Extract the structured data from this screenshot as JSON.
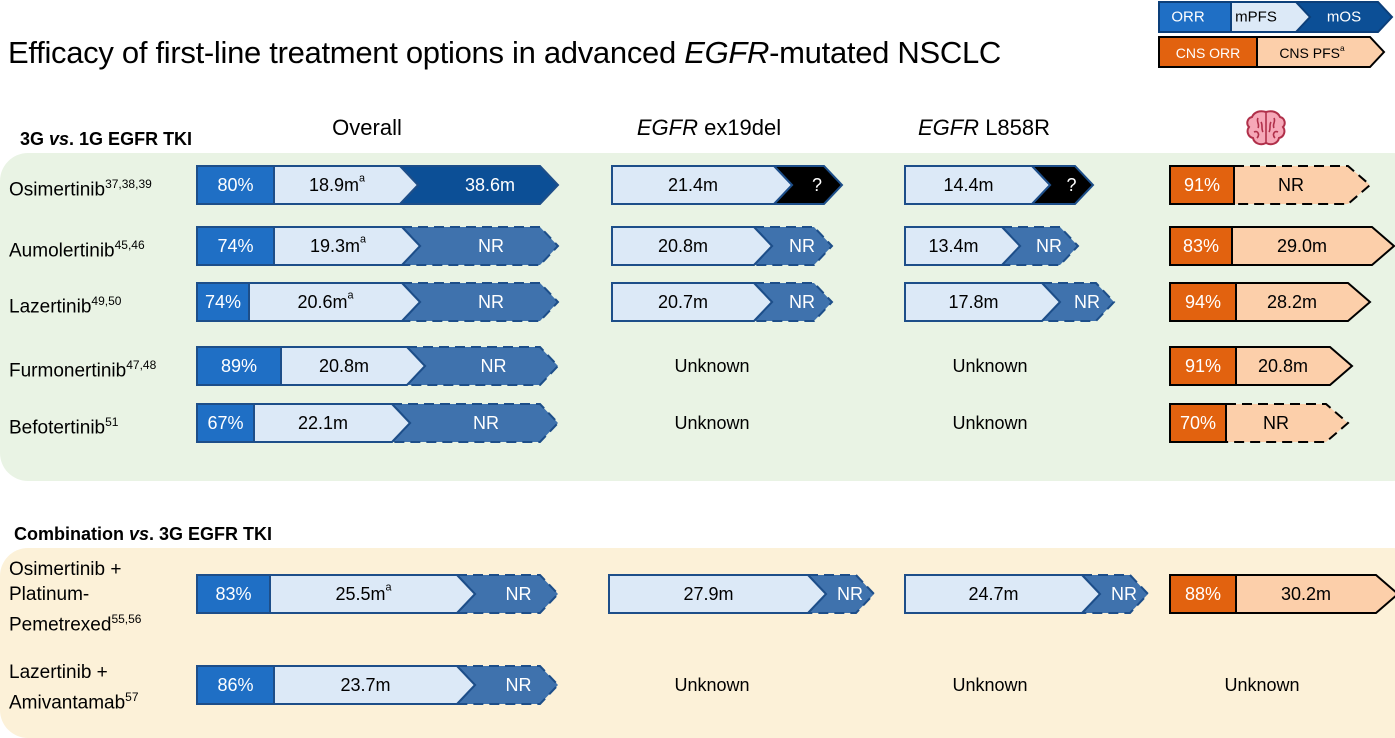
{
  "title": {
    "pre": "Efficacy of first-line treatment options in advanced ",
    "italic": "EGFR",
    "post": "-mutated NSCLC"
  },
  "legend": {
    "orr": "ORR",
    "mpfs": "mPFS",
    "mos": "mOS",
    "cns_orr": "CNS ORR",
    "cns_pfs": "CNS PFS",
    "cns_pfs_sup": "a"
  },
  "columns": {
    "overall": "Overall",
    "ex19_italic": "EGFR",
    "ex19_rest": " ex19del",
    "l858_italic": "EGFR",
    "l858_rest": " L858R",
    "cns_icon": "brain-icon"
  },
  "section1": {
    "pre": "3G ",
    "italic": "vs",
    "post": ". 1G EGFR TKI"
  },
  "section2": {
    "pre": "Combination ",
    "italic": "vs",
    "post": ". 3G EGFR TKI"
  },
  "rows": [
    {
      "drug": "Osimertinib",
      "sup": "37,38,39",
      "overall": {
        "orr": "80%",
        "pfs": "18.9m",
        "pfs_sup": "a",
        "os": "38.6m",
        "os_mature": true
      },
      "ex19": {
        "pfs": "21.4m",
        "os": "?"
      },
      "l858": {
        "pfs": "14.4m",
        "os": "?"
      },
      "cns": {
        "orr": "91%",
        "pfs": "NR",
        "pfs_mature": false
      }
    },
    {
      "drug": "Aumolertinib",
      "sup": "45,46",
      "overall": {
        "orr": "74%",
        "pfs": "19.3m",
        "pfs_sup": "a",
        "os": "NR",
        "os_mature": false
      },
      "ex19": {
        "pfs": "20.8m",
        "os": "NR"
      },
      "l858": {
        "pfs": "13.4m",
        "os": "NR"
      },
      "cns": {
        "orr": "83%",
        "pfs": "29.0m",
        "pfs_mature": true
      }
    },
    {
      "drug": "Lazertinib",
      "sup": "49,50",
      "overall": {
        "orr": "74%",
        "pfs": "20.6m",
        "pfs_sup": "a",
        "os": "NR",
        "os_mature": false
      },
      "ex19": {
        "pfs": "20.7m",
        "os": "NR"
      },
      "l858": {
        "pfs": "17.8m",
        "os": "NR"
      },
      "cns": {
        "orr": "94%",
        "pfs": "28.2m",
        "pfs_mature": true
      }
    },
    {
      "drug": "Furmonertinib",
      "sup": "47,48",
      "overall": {
        "orr": "89%",
        "pfs": "20.8m",
        "pfs_sup": "",
        "os": "NR",
        "os_mature": false
      },
      "ex19": {
        "unknown": "Unknown"
      },
      "l858": {
        "unknown": "Unknown"
      },
      "cns": {
        "orr": "91%",
        "pfs": "20.8m",
        "pfs_mature": true
      }
    },
    {
      "drug": "Befotertinib",
      "sup": "51",
      "overall": {
        "orr": "67%",
        "pfs": "22.1m",
        "pfs_sup": "",
        "os": "NR",
        "os_mature": false
      },
      "ex19": {
        "unknown": "Unknown"
      },
      "l858": {
        "unknown": "Unknown"
      },
      "cns": {
        "orr": "70%",
        "pfs": "NR",
        "pfs_mature": false
      }
    },
    {
      "drug_lines": [
        "Osimertinib +",
        "Platinum-",
        "Pemetrexed"
      ],
      "sup": "55,56",
      "overall": {
        "orr": "83%",
        "pfs": "25.5m",
        "pfs_sup": "a",
        "os": "NR",
        "os_mature": false
      },
      "ex19": {
        "pfs": "27.9m",
        "os": "NR"
      },
      "l858": {
        "pfs": "24.7m",
        "os": "NR"
      },
      "cns": {
        "orr": "88%",
        "pfs": "30.2m",
        "pfs_mature": true
      }
    },
    {
      "drug_lines": [
        "Lazertinib +",
        "Amivantamab"
      ],
      "sup": "57",
      "overall": {
        "orr": "86%",
        "pfs": "23.7m",
        "pfs_sup": "",
        "os": "NR",
        "os_mature": false
      },
      "ex19": {
        "unknown": "Unknown"
      },
      "l858": {
        "unknown": "Unknown"
      },
      "cns": {
        "unknown": "Unknown"
      }
    }
  ],
  "colors": {
    "orr_blue": "#1f6fc5",
    "pfs_light": "#dce9f7",
    "os_navy": "#0c4f96",
    "os_nr": "#3f72ad",
    "cns_orange": "#e2620f",
    "cns_peach": "#fccfaa",
    "black": "#000000",
    "panel_green": "#e9f3e4",
    "panel_yellow": "#fcf1d8"
  }
}
